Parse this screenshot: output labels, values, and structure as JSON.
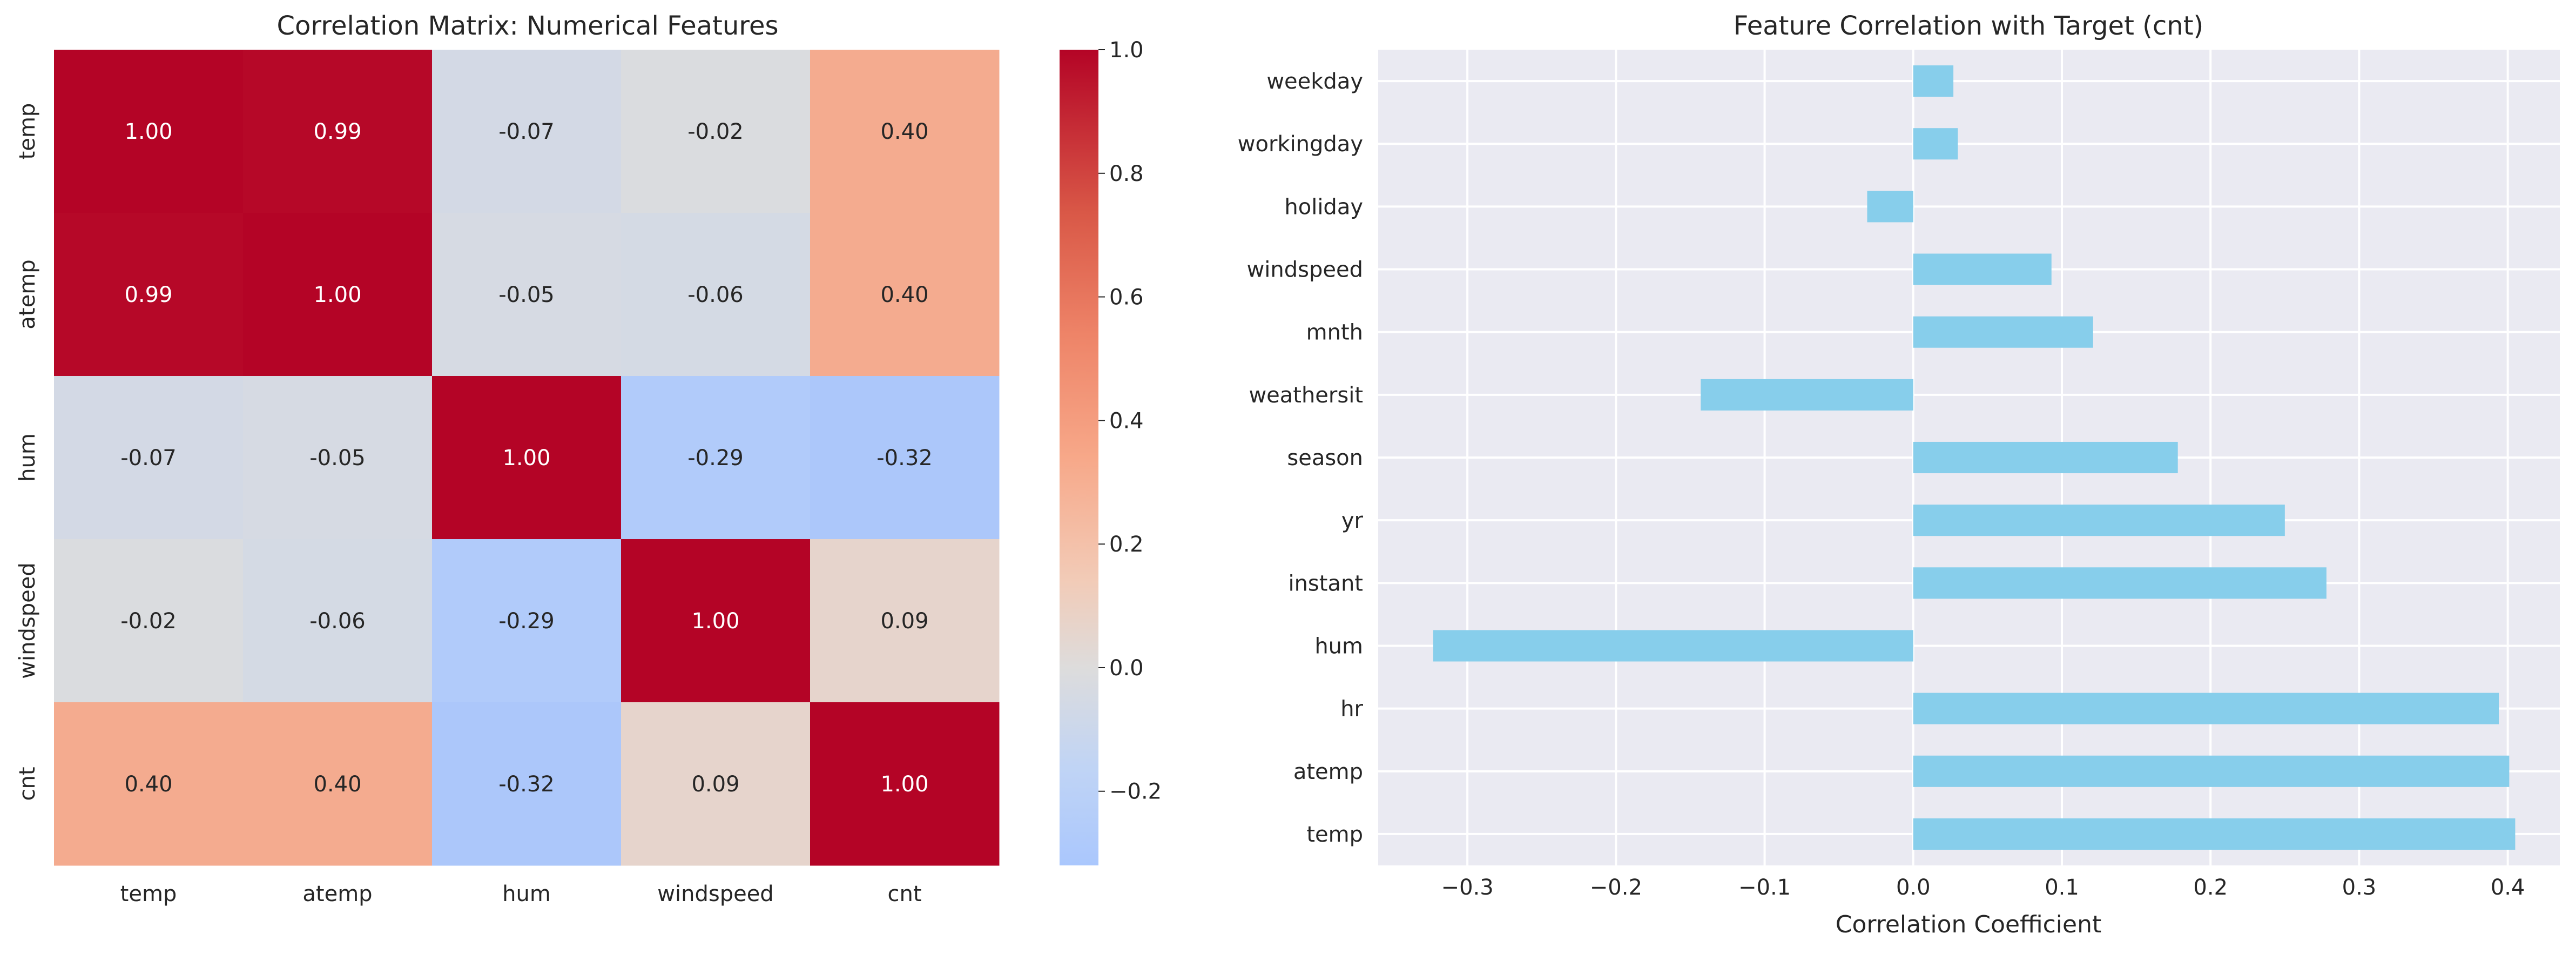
{
  "chart_data": [
    {
      "type": "heatmap",
      "title": "Correlation Matrix: Numerical Features",
      "rows": [
        "temp",
        "atemp",
        "hum",
        "windspeed",
        "cnt"
      ],
      "columns": [
        "temp",
        "atemp",
        "hum",
        "windspeed",
        "cnt"
      ],
      "values": [
        [
          1.0,
          0.99,
          -0.07,
          -0.02,
          0.4
        ],
        [
          0.99,
          1.0,
          -0.05,
          -0.06,
          0.4
        ],
        [
          -0.07,
          -0.05,
          1.0,
          -0.29,
          -0.32
        ],
        [
          -0.02,
          -0.06,
          -0.29,
          1.0,
          0.09
        ],
        [
          0.4,
          0.4,
          -0.32,
          0.09,
          1.0
        ]
      ],
      "annotation_format": "0.00",
      "colormap": "coolwarm",
      "color_range": [
        -0.32,
        1.0
      ],
      "colorbar_ticks": [
        -0.2,
        0.0,
        0.2,
        0.4,
        0.6,
        0.8,
        1.0
      ],
      "colorbar_tick_labels": [
        "−0.2",
        "0.0",
        "0.2",
        "0.4",
        "0.6",
        "0.8",
        "1.0"
      ]
    },
    {
      "type": "bar",
      "orientation": "horizontal",
      "title": "Feature Correlation with Target (cnt)",
      "xlabel": "Correlation Coefficient",
      "ylabel": "",
      "categories": [
        "temp",
        "atemp",
        "hr",
        "hum",
        "instant",
        "yr",
        "season",
        "weathersit",
        "mnth",
        "windspeed",
        "holiday",
        "workingday",
        "weekday"
      ],
      "values": [
        0.405,
        0.401,
        0.394,
        -0.323,
        0.278,
        0.25,
        0.178,
        -0.143,
        0.121,
        0.093,
        -0.031,
        0.03,
        0.027
      ],
      "xlim": [
        -0.36,
        0.435
      ],
      "x_ticks": [
        -0.3,
        -0.2,
        -0.1,
        0.0,
        0.1,
        0.2,
        0.3,
        0.4
      ],
      "x_tick_labels": [
        "−0.3",
        "−0.2",
        "−0.1",
        "0.0",
        "0.1",
        "0.2",
        "0.3",
        "0.4"
      ],
      "bar_color": "#87ceeb",
      "background": "#eaeaf2",
      "grid": true
    }
  ]
}
